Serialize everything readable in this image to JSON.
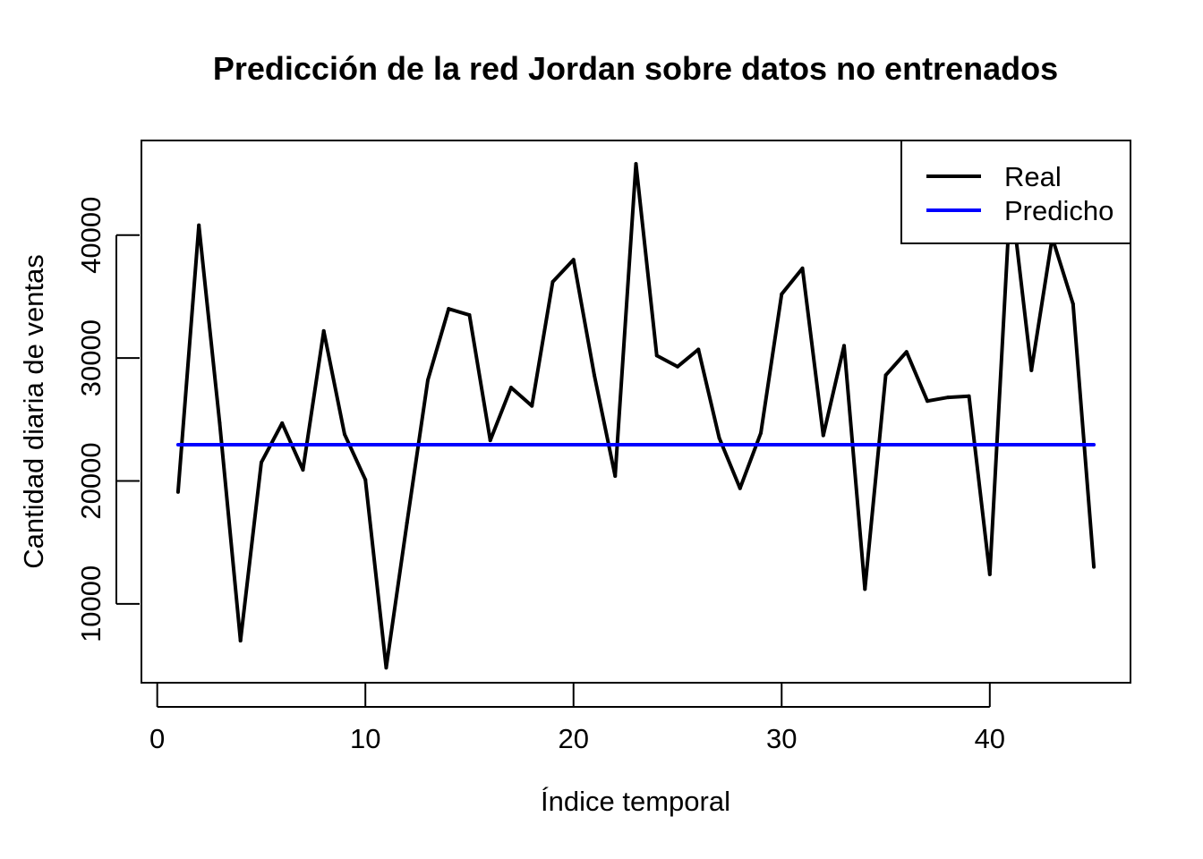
{
  "chart_data": {
    "type": "line",
    "title": "Predicción de la red Jordan sobre datos no entrenados",
    "xlabel": "Índice temporal",
    "ylabel": "Cantidad diaria de ventas",
    "xlim": [
      -0.76,
      46.76
    ],
    "ylim": [
      3580,
      47700
    ],
    "x_ticks": [
      0,
      10,
      20,
      30,
      40
    ],
    "y_ticks": [
      10000,
      20000,
      30000,
      40000
    ],
    "grid": false,
    "legend_position": "top-right",
    "x": [
      1,
      2,
      3,
      4,
      5,
      6,
      7,
      8,
      9,
      10,
      11,
      12,
      13,
      14,
      15,
      16,
      17,
      18,
      19,
      20,
      21,
      22,
      23,
      24,
      25,
      26,
      27,
      28,
      29,
      30,
      31,
      32,
      33,
      34,
      35,
      36,
      37,
      38,
      39,
      40,
      41,
      42,
      43,
      44,
      45
    ],
    "series": [
      {
        "name": "Real",
        "color": "#000000",
        "values": [
          19100,
          40800,
          24700,
          7000,
          21500,
          24700,
          20900,
          32200,
          23800,
          20100,
          4800,
          16600,
          28200,
          34000,
          33500,
          23300,
          27600,
          26100,
          36200,
          38000,
          28600,
          20400,
          45800,
          30200,
          29300,
          30700,
          23500,
          19400,
          23900,
          35200,
          37300,
          23700,
          31000,
          11200,
          28600,
          30500,
          26500,
          26800,
          26900,
          12400,
          43500,
          29000,
          39800,
          34400,
          13000
        ]
      },
      {
        "name": "Predicho",
        "color": "#0000ff",
        "values": [
          22950,
          22950,
          22950,
          22950,
          22950,
          22950,
          22950,
          22950,
          22950,
          22950,
          22950,
          22950,
          22950,
          22950,
          22950,
          22950,
          22950,
          22950,
          22950,
          22950,
          22950,
          22950,
          22950,
          22950,
          22950,
          22950,
          22950,
          22950,
          22950,
          22950,
          22950,
          22950,
          22950,
          22950,
          22950,
          22950,
          22950,
          22950,
          22950,
          22950,
          22950,
          22950,
          22950,
          22950,
          22950
        ]
      }
    ]
  }
}
